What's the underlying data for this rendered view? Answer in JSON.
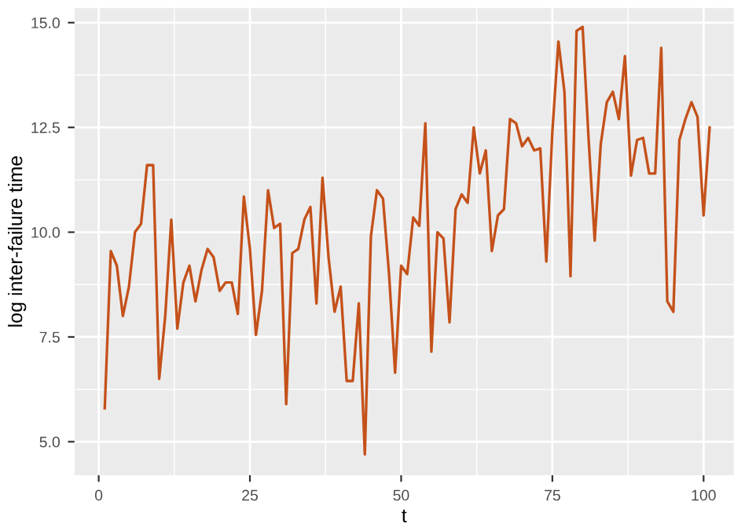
{
  "chart_data": {
    "type": "line",
    "xlabel": "t",
    "ylabel": "log inter-failure time",
    "x": [
      1,
      2,
      3,
      4,
      5,
      6,
      7,
      8,
      9,
      10,
      11,
      12,
      13,
      14,
      15,
      16,
      17,
      18,
      19,
      20,
      21,
      22,
      23,
      24,
      25,
      26,
      27,
      28,
      29,
      30,
      31,
      32,
      33,
      34,
      35,
      36,
      37,
      38,
      39,
      40,
      41,
      42,
      43,
      44,
      45,
      46,
      47,
      48,
      49,
      50,
      51,
      52,
      53,
      54,
      55,
      56,
      57,
      58,
      59,
      60,
      61,
      62,
      63,
      64,
      65,
      66,
      67,
      68,
      69,
      70,
      71,
      72,
      73,
      74,
      75,
      76,
      77,
      78,
      79,
      80,
      81,
      82,
      83,
      84,
      85,
      86,
      87,
      88,
      89,
      90,
      91,
      92,
      93,
      94,
      95,
      96,
      97,
      98,
      99,
      100,
      101
    ],
    "series": [
      {
        "color": "#c4511a",
        "values": [
          5.8,
          9.55,
          9.2,
          8.0,
          8.7,
          10.0,
          10.2,
          11.6,
          11.6,
          6.5,
          8.0,
          10.3,
          7.7,
          8.8,
          9.2,
          8.35,
          9.1,
          9.6,
          9.4,
          8.6,
          8.8,
          8.8,
          8.05,
          10.85,
          9.6,
          7.55,
          8.6,
          11.0,
          10.1,
          10.2,
          5.9,
          9.5,
          9.6,
          10.3,
          10.6,
          8.3,
          11.3,
          9.4,
          8.1,
          8.7,
          6.45,
          6.45,
          8.3,
          4.7,
          9.9,
          11.0,
          10.8,
          9.0,
          6.65,
          9.2,
          9.0,
          10.35,
          10.15,
          12.6,
          7.15,
          10.0,
          9.85,
          7.85,
          10.55,
          10.9,
          10.7,
          12.5,
          11.4,
          11.95,
          9.55,
          10.4,
          10.55,
          12.7,
          12.6,
          12.05,
          12.25,
          11.95,
          12.0,
          9.3,
          12.4,
          14.55,
          13.35,
          8.95,
          14.8,
          14.9,
          12.2,
          9.8,
          12.1,
          13.1,
          13.35,
          12.7,
          14.2,
          11.35,
          12.2,
          12.25,
          11.4,
          11.4,
          14.4,
          8.35,
          8.1,
          12.2,
          12.7,
          13.1,
          12.75,
          10.4,
          12.5
        ]
      }
    ],
    "xlim": [
      -4,
      105
    ],
    "xticks": [
      0,
      25,
      50,
      75,
      100
    ],
    "ylim": [
      4.2,
      15.35
    ],
    "yticks": [
      {
        "value": 5,
        "label": "5.0"
      },
      {
        "value": 7.5,
        "label": "7.5"
      },
      {
        "value": 10,
        "label": "10.0"
      },
      {
        "value": 12.5,
        "label": "12.5"
      },
      {
        "value": 15,
        "label": "15.0"
      }
    ],
    "grid": true,
    "legend": false
  }
}
